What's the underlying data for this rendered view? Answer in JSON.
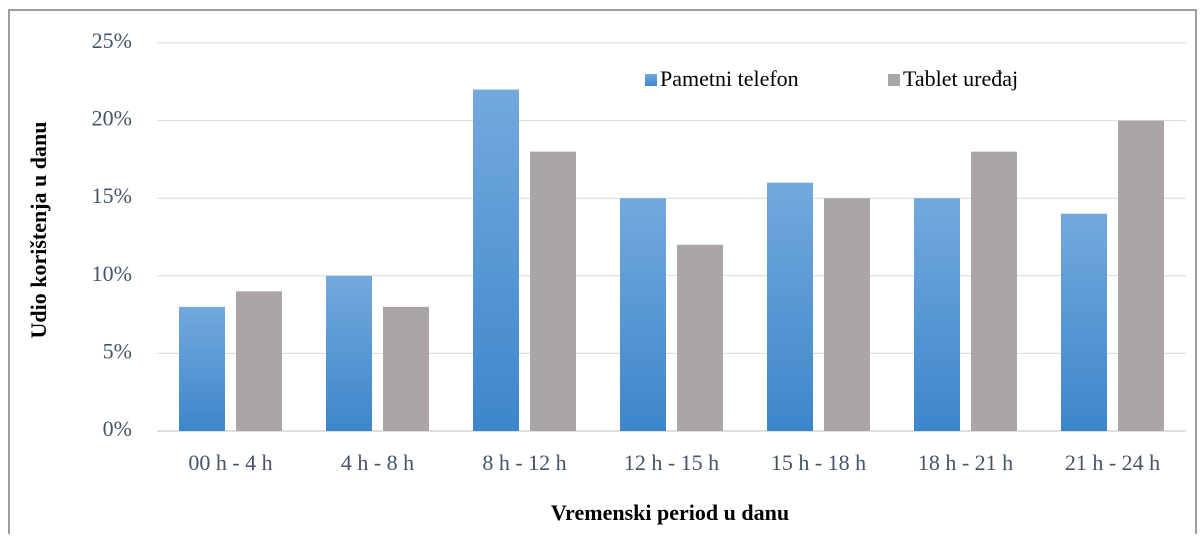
{
  "chart_data": {
    "type": "bar",
    "x_label": "Vremenski period u danu",
    "y_label": "Udio korištenja u danu",
    "categories": [
      "00 h - 4 h",
      "4 h - 8 h",
      "8 h - 12 h",
      "12 h - 15 h",
      "15 h - 18 h",
      "18 h - 21 h",
      "21 h - 24 h"
    ],
    "series": [
      {
        "name": "Pametni telefon",
        "color": "#4a90d6",
        "values": [
          8,
          10,
          22,
          15,
          16,
          15,
          14
        ]
      },
      {
        "name": "Tablet uređaj",
        "color": "#aba6a5",
        "values": [
          9,
          8,
          18,
          12,
          15,
          18,
          20
        ]
      }
    ],
    "ylim": [
      0,
      25
    ],
    "yticks": [
      {
        "value": 0,
        "label": "0%"
      },
      {
        "value": 5,
        "label": "5%"
      },
      {
        "value": 10,
        "label": "10%"
      },
      {
        "value": 15,
        "label": "15%"
      },
      {
        "value": 20,
        "label": "20%"
      },
      {
        "value": 25,
        "label": "25%"
      }
    ],
    "grid": true,
    "legend": "top-right"
  }
}
